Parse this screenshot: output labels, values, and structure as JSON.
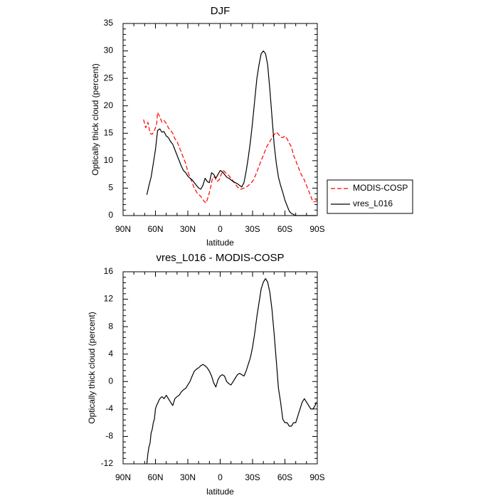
{
  "chart_data": [
    {
      "type": "line",
      "title": "DJF",
      "xlabel": "latitude",
      "ylabel": "Optically thick cloud (percent)",
      "x_ticks": [
        {
          "value": -90,
          "label": "90N"
        },
        {
          "value": -60,
          "label": "60N"
        },
        {
          "value": -30,
          "label": "30N"
        },
        {
          "value": 0,
          "label": "0"
        },
        {
          "value": 30,
          "label": "30S"
        },
        {
          "value": 60,
          "label": "60S"
        },
        {
          "value": 90,
          "label": "90S"
        }
      ],
      "xlim": [
        -90,
        90
      ],
      "ylim": [
        0,
        35
      ],
      "y_ticks": [
        0,
        5,
        10,
        15,
        20,
        25,
        30,
        35
      ],
      "legend_position": "right",
      "series": [
        {
          "name": "MODIS-COSP",
          "color": "#ff0000",
          "dash": "dashed",
          "x": [
            -71,
            -69,
            -67,
            -65,
            -63,
            -61,
            -59,
            -58,
            -56,
            -54,
            -52,
            -50,
            -48,
            -46,
            -44,
            -42,
            -40,
            -38,
            -35,
            -32,
            -30,
            -27,
            -24,
            -21,
            -18,
            -15,
            -13,
            -11,
            -9,
            -7,
            -5,
            -3,
            -1,
            1,
            3,
            5,
            7,
            10,
            13,
            16,
            19,
            22,
            25,
            28,
            31,
            34,
            37,
            40,
            43,
            46,
            49,
            52,
            54,
            56,
            58,
            60,
            62,
            64,
            66,
            68,
            70,
            72,
            75,
            78,
            80,
            82,
            84,
            86,
            88,
            90
          ],
          "values": [
            17.5,
            16.0,
            17.0,
            15.0,
            14.8,
            15.5,
            16.5,
            18.8,
            18.0,
            17.0,
            17.3,
            16.8,
            16.0,
            15.5,
            15.0,
            14.0,
            13.5,
            12.5,
            11.0,
            9.5,
            8.0,
            6.5,
            5.0,
            4.0,
            3.5,
            2.6,
            2.3,
            3.5,
            5.0,
            7.0,
            7.0,
            6.2,
            6.5,
            7.5,
            8.2,
            7.8,
            7.5,
            6.8,
            6.0,
            5.2,
            4.8,
            5.0,
            5.3,
            5.8,
            6.5,
            8.0,
            9.5,
            11.0,
            12.5,
            13.5,
            14.5,
            15.2,
            14.8,
            14.3,
            14.2,
            14.5,
            14.0,
            13.2,
            12.5,
            11.0,
            10.0,
            9.0,
            7.5,
            6.5,
            5.5,
            4.5,
            3.5,
            2.5,
            2.5,
            2.8
          ]
        },
        {
          "name": "vres_L016",
          "color": "#000000",
          "dash": "solid",
          "x": [
            -68,
            -66,
            -64,
            -62,
            -60,
            -58,
            -56,
            -54,
            -52,
            -50,
            -48,
            -46,
            -44,
            -42,
            -40,
            -38,
            -36,
            -34,
            -32,
            -30,
            -28,
            -26,
            -24,
            -22,
            -20,
            -18,
            -16,
            -14,
            -12,
            -10,
            -8,
            -6,
            -4,
            -2,
            0,
            2,
            4,
            6,
            8,
            10,
            12,
            14,
            16,
            18,
            20,
            22,
            24,
            26,
            28,
            30,
            32,
            34,
            36,
            38,
            40,
            42,
            44,
            46,
            48,
            50,
            52,
            54,
            56,
            58,
            60,
            62,
            64,
            66,
            68,
            70,
            72,
            74,
            76,
            78,
            80,
            82,
            84,
            86,
            88,
            89
          ],
          "values": [
            3.8,
            5.5,
            7.0,
            9.5,
            12.0,
            15.5,
            15.8,
            15.2,
            15.3,
            14.5,
            14.2,
            13.5,
            13.0,
            12.0,
            11.0,
            10.0,
            9.0,
            8.2,
            7.8,
            7.2,
            6.8,
            6.5,
            6.0,
            5.5,
            5.0,
            4.8,
            5.5,
            6.8,
            6.2,
            6.0,
            7.8,
            7.5,
            6.8,
            7.5,
            8.2,
            8.0,
            7.5,
            7.0,
            6.8,
            6.5,
            6.2,
            6.0,
            5.8,
            5.5,
            5.2,
            6.0,
            8.0,
            10.5,
            13.5,
            17.0,
            21.0,
            25.0,
            27.5,
            29.5,
            30.0,
            29.5,
            27.5,
            23.0,
            18.0,
            13.0,
            9.5,
            7.0,
            5.5,
            4.2,
            2.8,
            1.8,
            0.8,
            0.4,
            0.2,
            0.0,
            0,
            0,
            0,
            0,
            0,
            0,
            0,
            0,
            0,
            0
          ]
        }
      ]
    },
    {
      "type": "line",
      "title": "vres_L016 - MODIS-COSP",
      "xlabel": "latitude",
      "ylabel": "Optically thick cloud (percent)",
      "x_ticks": [
        {
          "value": -90,
          "label": "90N"
        },
        {
          "value": -60,
          "label": "60N"
        },
        {
          "value": -30,
          "label": "30N"
        },
        {
          "value": 0,
          "label": "0"
        },
        {
          "value": 30,
          "label": "30S"
        },
        {
          "value": 60,
          "label": "60S"
        },
        {
          "value": 90,
          "label": "90S"
        }
      ],
      "xlim": [
        -90,
        90
      ],
      "ylim": [
        -12,
        16
      ],
      "y_ticks": [
        -12,
        -8,
        -4,
        0,
        4,
        8,
        12,
        16
      ],
      "series": [
        {
          "name": "vres_L016 - MODIS-COSP",
          "color": "#000000",
          "dash": "solid",
          "x": [
            -68,
            -67,
            -66,
            -65,
            -64,
            -63,
            -62,
            -61,
            -60,
            -59,
            -58,
            -57,
            -56,
            -54,
            -52,
            -50,
            -48,
            -46,
            -44,
            -42,
            -40,
            -38,
            -36,
            -34,
            -32,
            -30,
            -28,
            -26,
            -24,
            -22,
            -20,
            -18,
            -16,
            -14,
            -12,
            -10,
            -8,
            -6,
            -4,
            -2,
            0,
            2,
            4,
            6,
            8,
            10,
            12,
            14,
            16,
            18,
            20,
            22,
            24,
            26,
            28,
            30,
            32,
            34,
            36,
            38,
            40,
            42,
            44,
            46,
            48,
            50,
            52,
            54,
            56,
            58,
            60,
            62,
            64,
            66,
            68,
            70,
            72,
            74,
            76,
            78,
            80,
            82,
            84,
            86,
            88,
            89
          ],
          "values": [
            -12.0,
            -10.5,
            -9.5,
            -9.0,
            -7.5,
            -7.0,
            -6.0,
            -5.5,
            -4.0,
            -3.5,
            -3.2,
            -2.8,
            -2.5,
            -2.2,
            -2.5,
            -2.0,
            -2.5,
            -3.0,
            -3.5,
            -2.5,
            -2.2,
            -2.0,
            -1.5,
            -1.2,
            -1.0,
            -0.5,
            0.0,
            0.8,
            1.5,
            1.8,
            2.0,
            2.3,
            2.5,
            2.3,
            2.0,
            1.5,
            0.8,
            -0.2,
            -0.8,
            0.3,
            0.8,
            1.0,
            0.8,
            0.0,
            -0.3,
            -0.5,
            0.0,
            0.5,
            1.0,
            1.2,
            1.0,
            0.8,
            1.5,
            2.5,
            3.5,
            5.0,
            7.0,
            9.5,
            11.5,
            13.5,
            14.5,
            15.0,
            14.5,
            13.0,
            10.5,
            7.0,
            3.0,
            -1.0,
            -3.0,
            -5.5,
            -6.0,
            -6.0,
            -6.5,
            -6.5,
            -6.0,
            -6.0,
            -5.0,
            -4.0,
            -3.0,
            -2.5,
            -3.0,
            -3.5,
            -4.0,
            -4.0,
            -3.5,
            -3.0
          ]
        }
      ]
    }
  ]
}
